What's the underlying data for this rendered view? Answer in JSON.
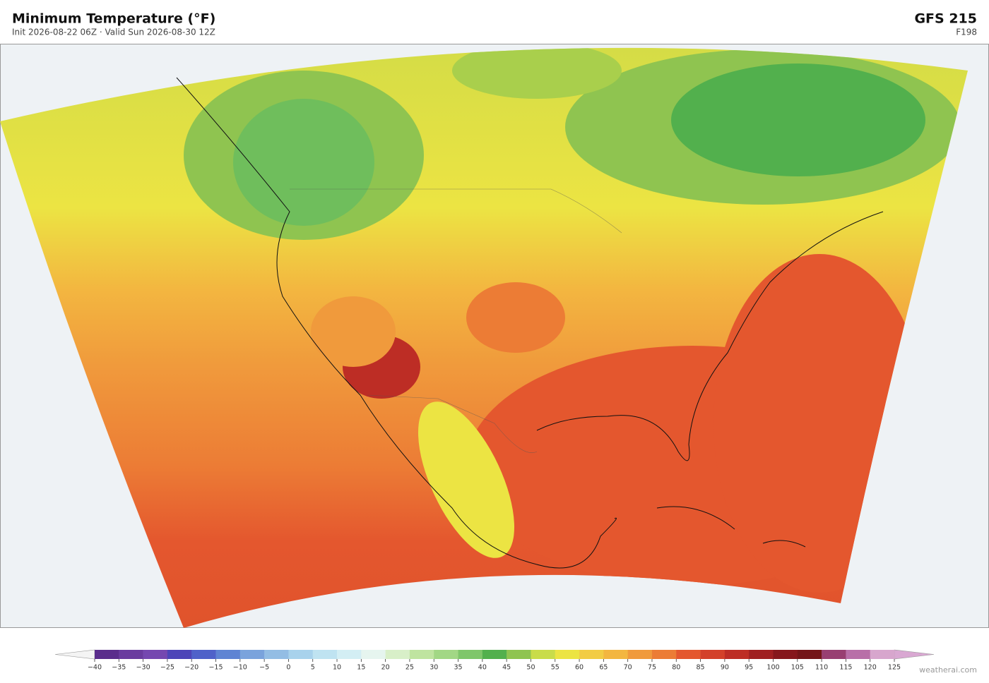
{
  "header": {
    "title": "Minimum Temperature  (°F)",
    "subtitle": "Init 2026-08-22 06Z  ·  Valid Sun 2026-08-30 12Z",
    "model": "GFS  215",
    "forecast_hour": "F198"
  },
  "colorbar": {
    "ticks": [
      {
        "value": -40,
        "label": "−40"
      },
      {
        "value": -35,
        "label": "−35"
      },
      {
        "value": -30,
        "label": "−30"
      },
      {
        "value": -25,
        "label": "−25"
      },
      {
        "value": -20,
        "label": "−20"
      },
      {
        "value": -15,
        "label": "−15"
      },
      {
        "value": -10,
        "label": "−10"
      },
      {
        "value": -5,
        "label": "−5"
      },
      0,
      5,
      10,
      15,
      20,
      25,
      30,
      35,
      40,
      45,
      50,
      55,
      60,
      65,
      70,
      75,
      80,
      85,
      90,
      95,
      100,
      105,
      110,
      115,
      120,
      125
    ],
    "colors": [
      "#5a2d8c",
      "#6a3c9f",
      "#7548b0",
      "#4d45b8",
      "#4f62c9",
      "#5f84d3",
      "#7aa3dc",
      "#93bde4",
      "#a8d2ec",
      "#bfe3f1",
      "#d3eef4",
      "#e6f5ef",
      "#d8efc8",
      "#bfe4a0",
      "#a2d785",
      "#7fc66a",
      "#52b04d",
      "#8fc450",
      "#c9dc4a",
      "#ece443",
      "#f2cc44",
      "#f3b640",
      "#f09a3c",
      "#ec7c35",
      "#e4572e",
      "#d3412a",
      "#bd2d25",
      "#a01f21",
      "#86171c",
      "#741518",
      "#983f72",
      "#b86fa8",
      "#d7a6cd"
    ],
    "under_color": "#f4f4f4",
    "over_color": "#d9a8d2"
  },
  "footer": {
    "credit": "weatherai.com"
  }
}
